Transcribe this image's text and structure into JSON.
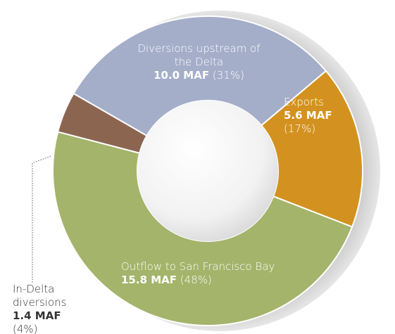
{
  "chart_data": {
    "type": "donut",
    "categories": [
      "Diversions upstream of the Delta",
      "Exports",
      "Outflow to San Francisco Bay",
      "In-Delta diversions"
    ],
    "values": [
      10.0,
      5.6,
      15.8,
      1.4
    ],
    "value_labels": [
      "10.0 MAF",
      "5.6 MAF",
      "15.8 MAF",
      "1.4 MAF"
    ],
    "share_labels": [
      "(31%)",
      "(17%)",
      "(48%)",
      "(4%)"
    ],
    "colors": [
      "#a4aec9",
      "#d3921f",
      "#a4b46b",
      "#8c6550"
    ]
  }
}
